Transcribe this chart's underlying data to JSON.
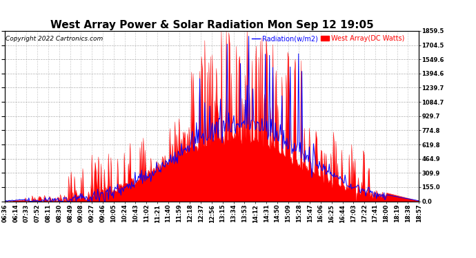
{
  "title": "West Array Power & Solar Radiation Mon Sep 12 19:05",
  "copyright": "Copyright 2022 Cartronics.com",
  "legend_radiation": "Radiation(w/m2)",
  "legend_west": "West Array(DC Watts)",
  "radiation_color": "blue",
  "west_color": "red",
  "background_color": "#ffffff",
  "grid_color": "#999999",
  "ymin": 0.0,
  "ymax": 1859.5,
  "yticks": [
    0.0,
    155.0,
    309.9,
    464.9,
    619.8,
    774.8,
    929.7,
    1084.7,
    1239.7,
    1394.6,
    1549.6,
    1704.5,
    1859.5
  ],
  "title_fontsize": 11,
  "label_fontsize": 7,
  "tick_fontsize": 6,
  "copyright_fontsize": 6.5,
  "xtick_labels": [
    "06:36",
    "06:14",
    "07:33",
    "07:52",
    "08:11",
    "08:30",
    "08:49",
    "09:08",
    "09:27",
    "09:46",
    "10:05",
    "10:24",
    "10:43",
    "11:02",
    "11:21",
    "11:40",
    "11:59",
    "12:18",
    "12:37",
    "12:56",
    "13:15",
    "13:34",
    "13:53",
    "14:12",
    "14:31",
    "14:50",
    "15:09",
    "15:28",
    "15:47",
    "16:06",
    "16:25",
    "16:44",
    "17:03",
    "17:22",
    "17:41",
    "18:00",
    "18:19",
    "18:38",
    "18:57"
  ]
}
